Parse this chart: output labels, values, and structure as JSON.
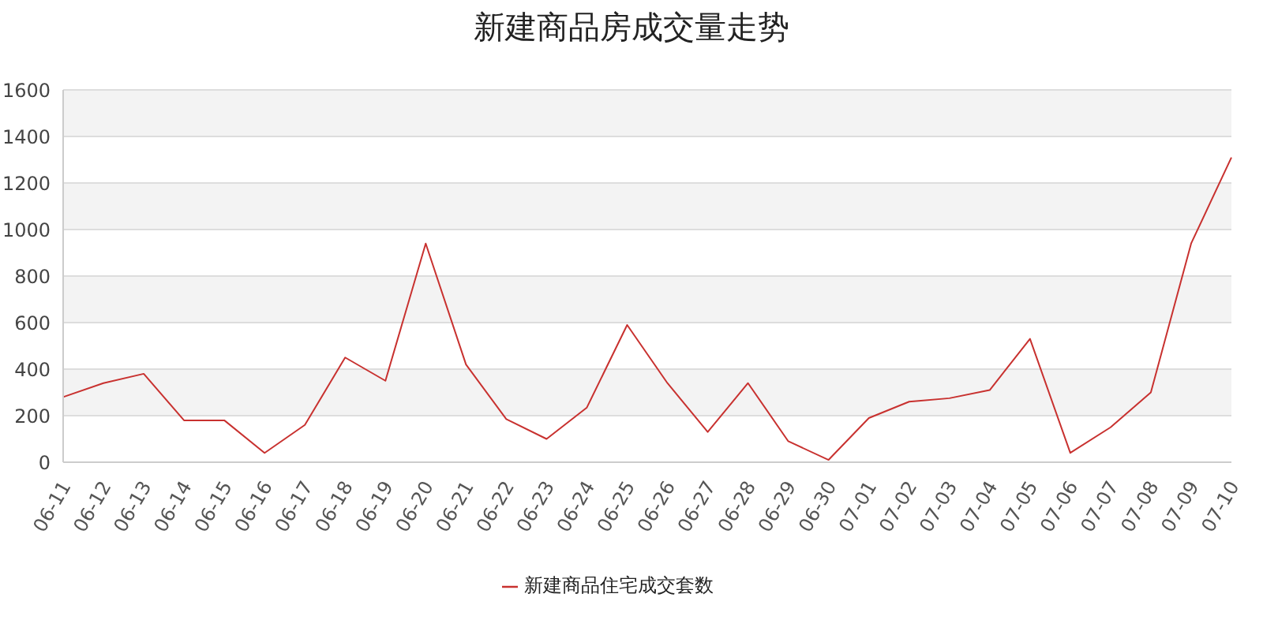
{
  "chart_data": {
    "type": "line",
    "title": "新建商品房成交量走势",
    "categories": [
      "06-11",
      "06-12",
      "06-13",
      "06-14",
      "06-15",
      "06-16",
      "06-17",
      "06-18",
      "06-19",
      "06-20",
      "06-21",
      "06-22",
      "06-23",
      "06-24",
      "06-25",
      "06-26",
      "06-27",
      "06-28",
      "06-29",
      "06-30",
      "07-01",
      "07-02",
      "07-03",
      "07-04",
      "07-05",
      "07-06",
      "07-07",
      "07-08",
      "07-09",
      "07-10"
    ],
    "series": [
      {
        "name": "新建商品住宅成交套数",
        "color": "#c8312f",
        "values": [
          280,
          340,
          380,
          180,
          180,
          40,
          160,
          450,
          350,
          940,
          420,
          185,
          100,
          235,
          590,
          340,
          130,
          340,
          90,
          10,
          190,
          260,
          275,
          310,
          530,
          40,
          150,
          300,
          940,
          1310
        ]
      }
    ],
    "ylim": [
      0,
      1600
    ],
    "yticks": [
      0,
      200,
      400,
      600,
      800,
      1000,
      1200,
      1400,
      1600
    ],
    "grid": "y",
    "legend": "bottom",
    "marker": "none",
    "line_style": "solid"
  }
}
